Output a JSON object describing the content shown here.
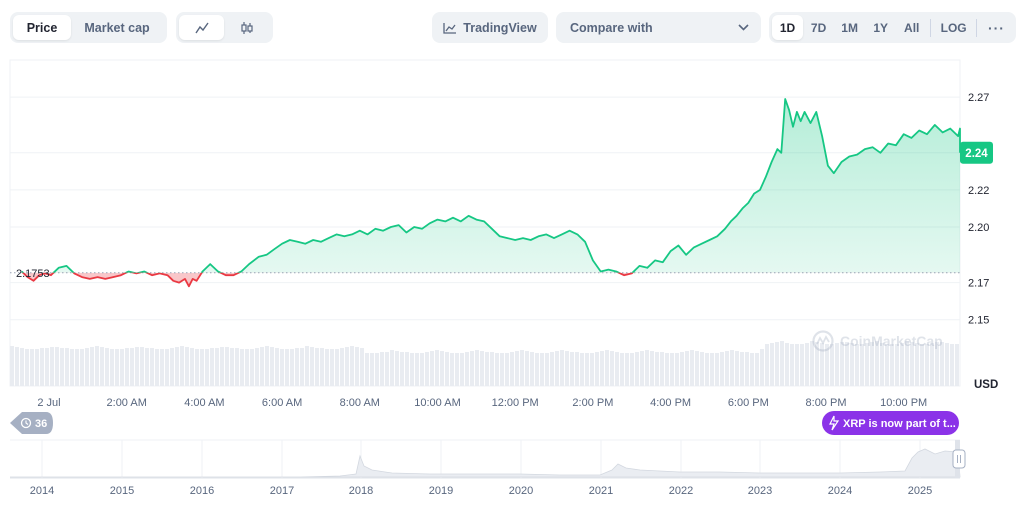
{
  "toolbar": {
    "type_tabs": [
      "Price",
      "Market cap"
    ],
    "tradingview_label": "TradingView",
    "compare_label": "Compare with",
    "ranges": [
      "1D",
      "7D",
      "1M",
      "1Y",
      "All"
    ],
    "log_label": "LOG",
    "more_label": "···"
  },
  "watermark": "CoinMarketCap",
  "badge_count": "36",
  "news_pill": "XRP is now part of t...",
  "colors": {
    "up": "#16c784",
    "down": "#ea3943",
    "accent": "#8b33e8"
  },
  "chart_data": {
    "type": "line",
    "title": "",
    "currency_label": "USD",
    "reference_value": 2.1753,
    "reference_label": "2.1753",
    "current_value": 2.24,
    "current_label": "2.24",
    "ylim": [
      2.138,
      2.29
    ],
    "y_ticks": [
      2.15,
      2.17,
      2.2,
      2.22,
      2.24,
      2.27
    ],
    "y_tick_labels": [
      "2.15",
      "2.17",
      "2.20",
      "2.22",
      "2.24",
      "2.27"
    ],
    "x_tick_labels": [
      "2 Jul",
      "2:00 AM",
      "4:00 AM",
      "6:00 AM",
      "8:00 AM",
      "10:00 AM",
      "12:00 PM",
      "2:00 PM",
      "4:00 PM",
      "6:00 PM",
      "8:00 PM",
      "10:00 PM"
    ],
    "x_tick_hours": [
      0,
      2,
      4,
      6,
      8,
      10,
      12,
      14,
      16,
      18,
      20,
      22
    ],
    "series": [
      {
        "name": "Price",
        "hours": [
          -0.7,
          -0.55,
          -0.4,
          -0.25,
          -0.1,
          0.05,
          0.25,
          0.45,
          0.65,
          0.85,
          1.05,
          1.25,
          1.45,
          1.65,
          1.85,
          2.05,
          2.25,
          2.45,
          2.65,
          2.85,
          3.05,
          3.2,
          3.35,
          3.5,
          3.6,
          3.7,
          3.8,
          3.95,
          4.15,
          4.35,
          4.55,
          4.75,
          4.95,
          5.15,
          5.4,
          5.6,
          5.8,
          6.0,
          6.2,
          6.4,
          6.6,
          6.8,
          7.0,
          7.2,
          7.4,
          7.6,
          7.8,
          8.0,
          8.2,
          8.4,
          8.6,
          8.8,
          9.0,
          9.2,
          9.4,
          9.6,
          9.8,
          10.0,
          10.2,
          10.4,
          10.6,
          10.8,
          11.0,
          11.2,
          11.4,
          11.6,
          11.8,
          12.0,
          12.2,
          12.4,
          12.6,
          12.8,
          13.0,
          13.2,
          13.4,
          13.6,
          13.8,
          14.0,
          14.2,
          14.4,
          14.6,
          14.8,
          15.0,
          15.2,
          15.4,
          15.6,
          15.8,
          16.0,
          16.2,
          16.4,
          16.6,
          16.8,
          17.0,
          17.2,
          17.4,
          17.55,
          17.7,
          17.85,
          18.0,
          18.15,
          18.3,
          18.45,
          18.6,
          18.75,
          18.85,
          18.95,
          19.05,
          19.15,
          19.25,
          19.35,
          19.45,
          19.6,
          19.75,
          19.9,
          20.05,
          20.2,
          20.4,
          20.6,
          20.8,
          21.0,
          21.2,
          21.4,
          21.6,
          21.8,
          22.0,
          22.2,
          22.4,
          22.6,
          22.8,
          23.0,
          23.2,
          23.4,
          23.6,
          23.8,
          23.95,
          24.1
        ],
        "values": [
          2.176,
          2.173,
          2.171,
          2.174,
          2.175,
          2.174,
          2.178,
          2.179,
          2.175,
          2.173,
          2.172,
          2.173,
          2.172,
          2.173,
          2.174,
          2.176,
          2.175,
          2.176,
          2.174,
          2.175,
          2.174,
          2.171,
          2.17,
          2.172,
          2.168,
          2.172,
          2.171,
          2.176,
          2.18,
          2.176,
          2.174,
          2.174,
          2.176,
          2.18,
          2.184,
          2.185,
          2.188,
          2.191,
          2.193,
          2.192,
          2.191,
          2.193,
          2.192,
          2.194,
          2.196,
          2.195,
          2.196,
          2.198,
          2.196,
          2.199,
          2.198,
          2.2,
          2.201,
          2.197,
          2.2,
          2.199,
          2.202,
          2.204,
          2.203,
          2.205,
          2.203,
          2.206,
          2.204,
          2.203,
          2.199,
          2.195,
          2.194,
          2.193,
          2.194,
          2.193,
          2.195,
          2.196,
          2.194,
          2.196,
          2.198,
          2.196,
          2.192,
          2.182,
          2.176,
          2.177,
          2.176,
          2.174,
          2.175,
          2.179,
          2.178,
          2.182,
          2.181,
          2.187,
          2.19,
          2.185,
          2.189,
          2.191,
          2.193,
          2.195,
          2.199,
          2.203,
          2.206,
          2.21,
          2.213,
          2.218,
          2.22,
          2.227,
          2.235,
          2.242,
          2.24,
          2.269,
          2.263,
          2.254,
          2.262,
          2.257,
          2.262,
          2.256,
          2.262,
          2.249,
          2.233,
          2.229,
          2.235,
          2.238,
          2.239,
          2.242,
          2.243,
          2.24,
          2.245,
          2.244,
          2.25,
          2.248,
          2.252,
          2.25,
          2.255,
          2.251,
          2.253,
          2.249,
          2.253,
          2.248,
          2.249,
          2.24
        ]
      }
    ]
  }
}
